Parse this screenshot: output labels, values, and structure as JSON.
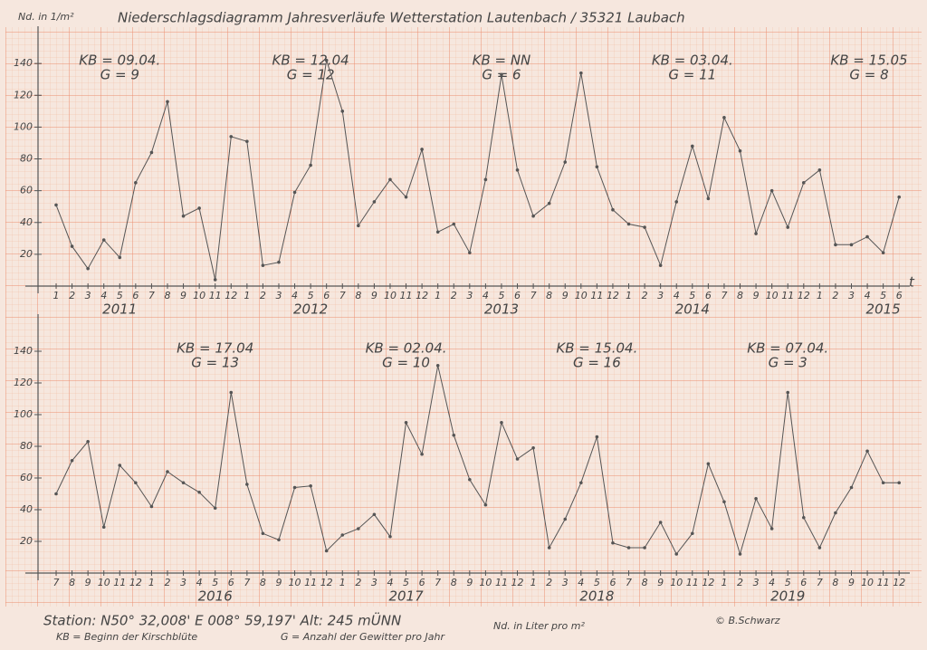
{
  "title": "Niederschlagsdiagramm Jahresverläufe   Wetterstation Lautenbach / 35321 Laubach",
  "footer": {
    "station": "Station: N50° 32,008'  E 008° 59,197'  Alt: 245 mÜNN",
    "kb_legend": "KB = Beginn der Kirschblüte",
    "g_legend": "G = Anzahl der Gewitter pro Jahr",
    "unit_note": "Nd. in Liter pro m²",
    "author": "© B.Schwarz"
  },
  "chart_data": [
    {
      "type": "line",
      "y_label": "Nd. in 1/m²",
      "x_label": "t",
      "color": "#555555",
      "categories": [
        "1",
        "2",
        "3",
        "4",
        "5",
        "6",
        "7",
        "8",
        "9",
        "10",
        "11",
        "12",
        "1",
        "2",
        "3",
        "4",
        "5",
        "6",
        "7",
        "8",
        "9",
        "10",
        "11",
        "12",
        "1",
        "2",
        "3",
        "4",
        "5",
        "6",
        "7",
        "8",
        "9",
        "10",
        "11",
        "12",
        "1",
        "2",
        "3",
        "4",
        "5",
        "6",
        "7",
        "8",
        "9",
        "10",
        "11",
        "12",
        "1",
        "2",
        "3",
        "4",
        "5",
        "6"
      ],
      "values": [
        51,
        25,
        11,
        29,
        18,
        65,
        84,
        116,
        44,
        49,
        4,
        94,
        91,
        13,
        15,
        59,
        76,
        142,
        110,
        38,
        53,
        67,
        56,
        86,
        34,
        39,
        21,
        67,
        133,
        73,
        44,
        52,
        78,
        134,
        75,
        48,
        39,
        37,
        13,
        53,
        88,
        55,
        106,
        85,
        33,
        60,
        37,
        65,
        73,
        26,
        26,
        31,
        21,
        56
      ],
      "years": [
        "2011",
        "2012",
        "2013",
        "2014",
        "2015"
      ],
      "annotations": [
        [
          "KB = 09.04.",
          "G = 9"
        ],
        [
          "KB = 12.04",
          "G = 12"
        ],
        [
          "KB = NN",
          "G = 6"
        ],
        [
          "KB = 03.04.",
          "G = 11"
        ],
        [
          "KB = 15.05",
          "G = 8"
        ]
      ],
      "ylim": [
        0,
        160
      ],
      "yticks": [
        20,
        40,
        60,
        80,
        100,
        120,
        140
      ]
    },
    {
      "type": "line",
      "color": "#555555",
      "categories": [
        "7",
        "8",
        "9",
        "10",
        "11",
        "12",
        "1",
        "2",
        "3",
        "4",
        "5",
        "6",
        "7",
        "8",
        "9",
        "10",
        "11",
        "12",
        "1",
        "2",
        "3",
        "4",
        "5",
        "6",
        "7",
        "8",
        "9",
        "10",
        "11",
        "12",
        "1",
        "2",
        "3",
        "4",
        "5",
        "6",
        "7",
        "8",
        "9",
        "10",
        "11",
        "12",
        "1",
        "2",
        "3",
        "4",
        "5",
        "6",
        "7",
        "8",
        "9",
        "10",
        "11",
        "12"
      ],
      "values": [
        50,
        71,
        83,
        29,
        68,
        57,
        42,
        64,
        57,
        51,
        41,
        114,
        56,
        25,
        21,
        54,
        55,
        14,
        24,
        28,
        37,
        23,
        95,
        75,
        131,
        87,
        59,
        43,
        95,
        72,
        79,
        16,
        34,
        57,
        86,
        19,
        16,
        16,
        32,
        12,
        25,
        69,
        45,
        12,
        47,
        28,
        114,
        35,
        16,
        38,
        54,
        77,
        57,
        57
      ],
      "years": [
        "2016",
        "2017",
        "2018",
        "2019"
      ],
      "annotations": [
        [
          "KB = 17.04",
          "G = 13"
        ],
        [
          "KB = 02.04.",
          "G = 10"
        ],
        [
          "KB = 15.04.",
          "G = 16"
        ],
        [
          "KB = 07.04.",
          "G = 3"
        ]
      ],
      "ylim": [
        0,
        160
      ],
      "yticks": [
        20,
        40,
        60,
        80,
        100,
        120,
        140
      ]
    }
  ]
}
